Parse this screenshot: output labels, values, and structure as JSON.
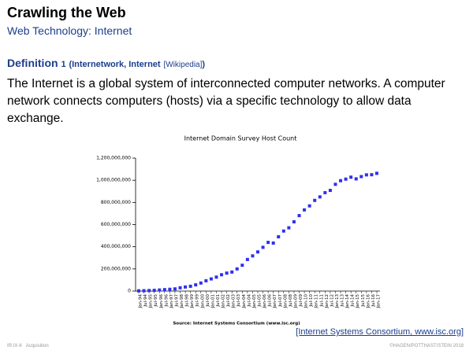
{
  "header": {
    "title": "Crawling the Web",
    "subtitle": "Web Technology: Internet"
  },
  "definition": {
    "label": "Definition",
    "number": "1",
    "term": "(Internetwork, Internet",
    "link": "[Wikipedia]",
    "close": ")"
  },
  "body": "The Internet is a global system of interconnected computer networks. A computer network connects computers (hosts) via a specific technology to allow data exchange.",
  "chart_data": {
    "type": "scatter",
    "title": "Internet Domain Survey Host Count",
    "source": "Source: Internet Systems Consortium (www.isc.org)",
    "categories": [
      "Jan-94",
      "Jul-94",
      "Jan-95",
      "Jul-95",
      "Jan-96",
      "Jul-96",
      "Jan-97",
      "Jul-97",
      "Jan-98",
      "Jul-98",
      "Jan-99",
      "Jul-99",
      "Jan-00",
      "Jul-00",
      "Jan-01",
      "Jul-01",
      "Jan-02",
      "Jul-02",
      "Jan-03",
      "Jul-03",
      "Jan-04",
      "Jul-04",
      "Jan-05",
      "Jul-05",
      "Jan-06",
      "Jul-06",
      "Jan-07",
      "Jul-07",
      "Jan-08",
      "Jul-08",
      "Jan-09",
      "Jul-09",
      "Jan-10",
      "Jul-10",
      "Jan-11",
      "Jul-11",
      "Jan-12",
      "Jul-12",
      "Jan-13",
      "Jul-13",
      "Jan-14",
      "Jul-14",
      "Jan-15",
      "Jul-15",
      "Jan-16",
      "Jul-16",
      "Jan-17"
    ],
    "series": [
      {
        "name": "Host Count",
        "color": "#2f2ff0",
        "values": [
          2200000,
          3200000,
          4900000,
          6600000,
          9500000,
          12900000,
          16100000,
          19500000,
          29700000,
          36700000,
          43200000,
          56200000,
          72400000,
          93000000,
          109600000,
          125900000,
          147300000,
          162100000,
          171600000,
          200000000,
          233100000,
          285100000,
          317600000,
          353300000,
          394900000,
          439300000,
          433200000,
          489800000,
          541700000,
          570900000,
          625200000,
          681100000,
          732700000,
          768900000,
          818400000,
          849900000,
          888200000,
          908600000,
          963500000,
          996200000,
          1010300000,
          1028100000,
          1012700000,
          1033200000,
          1048800000,
          1050000000,
          1062700000
        ]
      }
    ],
    "ylim": [
      0,
      1200000000
    ],
    "yticks": [
      0,
      {
        "value": 200000000,
        "label": "200,000,000"
      },
      {
        "value": 400000000,
        "label": "400,000,000"
      },
      {
        "value": 600000000,
        "label": "600,000,000"
      },
      {
        "value": 800000000,
        "label": "800,000,000"
      },
      {
        "value": 1000000000,
        "label": "1,000,000,000"
      },
      {
        "value": 1200000000,
        "label": "1,200,000,000"
      }
    ]
  },
  "citation": "[Internet Systems Consortium, www.isc.org]",
  "footer": {
    "left": "IR:IX-6",
    "section": "Acquisition",
    "right": "©HAGEN/POTTHAST/STEIN 2018"
  }
}
